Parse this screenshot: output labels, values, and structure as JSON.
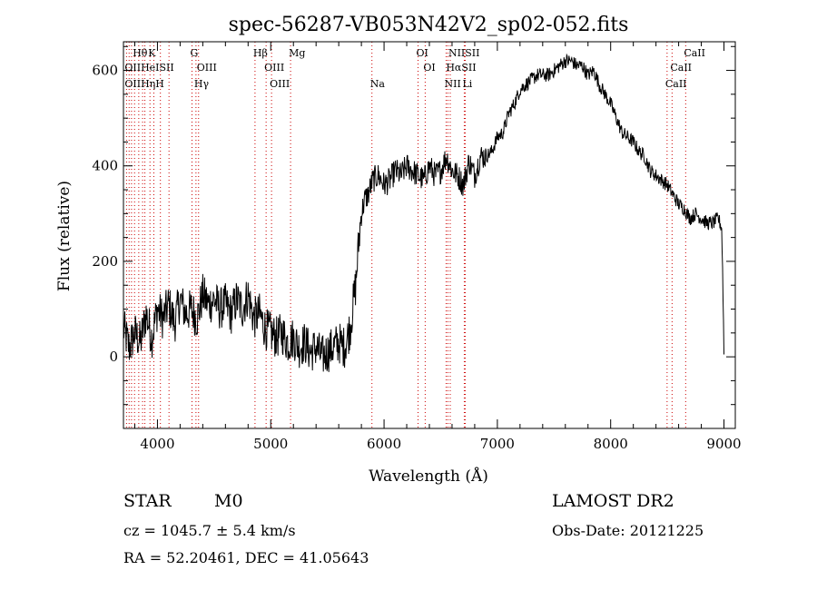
{
  "chart_data": {
    "type": "line",
    "title": "spec-56287-VB053N42V2_sp02-052.fits",
    "xlabel": "Wavelength (Å)",
    "ylabel": "Flux (relative)",
    "xlim": [
      3700,
      9100
    ],
    "ylim": [
      -150,
      660
    ],
    "x_ticks": [
      4000,
      5000,
      6000,
      7000,
      8000,
      9000
    ],
    "y_ticks": [
      0,
      200,
      400,
      600
    ],
    "grid": false,
    "series": [
      {
        "x": [
          3700,
          3750,
          3800,
          3850,
          3900,
          3950,
          4000,
          4050,
          4100,
          4150,
          4200,
          4250,
          4300,
          4350,
          4400,
          4450,
          4500,
          4550,
          4600,
          4650,
          4700,
          4750,
          4800,
          4850,
          4900,
          4950,
          5000,
          5050,
          5100,
          5150,
          5200,
          5250,
          5300,
          5350,
          5400,
          5450,
          5500,
          5550,
          5600,
          5650,
          5700,
          5750,
          5780,
          5800,
          5830,
          5860,
          5900,
          5950,
          6000,
          6050,
          6100,
          6150,
          6200,
          6250,
          6300,
          6350,
          6400,
          6450,
          6500,
          6550,
          6600,
          6650,
          6700,
          6750,
          6800,
          6850,
          6900,
          6950,
          7000,
          7050,
          7100,
          7150,
          7200,
          7250,
          7300,
          7350,
          7400,
          7450,
          7500,
          7550,
          7600,
          7650,
          7700,
          7750,
          7800,
          7850,
          7900,
          7950,
          8000,
          8050,
          8100,
          8150,
          8200,
          8250,
          8300,
          8350,
          8400,
          8450,
          8500,
          8550,
          8600,
          8650,
          8700,
          8750,
          8800,
          8850,
          8900,
          8950,
          8980,
          8990,
          9000
        ],
        "y": [
          60,
          20,
          50,
          30,
          90,
          40,
          100,
          80,
          110,
          70,
          120,
          90,
          100,
          80,
          130,
          110,
          120,
          100,
          110,
          90,
          120,
          100,
          130,
          80,
          90,
          60,
          50,
          40,
          50,
          30,
          40,
          20,
          30,
          10,
          20,
          0,
          10,
          20,
          30,
          20,
          60,
          150,
          250,
          300,
          330,
          340,
          370,
          380,
          360,
          370,
          390,
          380,
          400,
          390,
          380,
          370,
          400,
          380,
          390,
          420,
          390,
          380,
          360,
          410,
          380,
          420,
          420,
          430,
          460,
          470,
          510,
          530,
          560,
          570,
          580,
          590,
          590,
          590,
          600,
          610,
          620,
          620,
          610,
          610,
          590,
          600,
          570,
          550,
          530,
          500,
          470,
          460,
          450,
          430,
          420,
          390,
          380,
          370,
          360,
          340,
          320,
          310,
          290,
          300,
          290,
          280,
          280,
          290,
          270,
          160,
          10
        ]
      }
    ],
    "emission_lines": [
      {
        "label": "Hθ",
        "x": 3798,
        "row": 1
      },
      {
        "label": "K",
        "x": 3934,
        "row": 1
      },
      {
        "label": "G",
        "x": 4305,
        "row": 1
      },
      {
        "label": "Hβ",
        "x": 4861,
        "row": 1
      },
      {
        "label": "Mg",
        "x": 5175,
        "row": 1
      },
      {
        "label": "OI",
        "x": 6300,
        "row": 1
      },
      {
        "label": "NIISII",
        "x": 6584,
        "row": 1
      },
      {
        "label": "CaII",
        "x": 8662,
        "row": 1
      },
      {
        "label": "OIIHeISII",
        "x": 3727,
        "row": 2
      },
      {
        "label": "OIII",
        "x": 4363,
        "row": 2
      },
      {
        "label": "OIII",
        "x": 4959,
        "row": 2
      },
      {
        "label": "OI",
        "x": 6363,
        "row": 2
      },
      {
        "label": "HαSII",
        "x": 6563,
        "row": 2
      },
      {
        "label": "CaII",
        "x": 8542,
        "row": 2
      },
      {
        "label": "OIIHηH",
        "x": 3727,
        "row": 3
      },
      {
        "label": "Hγ",
        "x": 4340,
        "row": 3
      },
      {
        "label": "OIII",
        "x": 5007,
        "row": 3
      },
      {
        "label": "Na",
        "x": 5893,
        "row": 3
      },
      {
        "label": "NII",
        "x": 6548,
        "row": 3
      },
      {
        "label": "Li",
        "x": 6708,
        "row": 3
      },
      {
        "label": "CaII",
        "x": 8498,
        "row": 3
      }
    ],
    "marker_lines_x": [
      3727,
      3750,
      3771,
      3798,
      3835,
      3869,
      3889,
      3934,
      3968,
      4026,
      4102,
      4305,
      4340,
      4363,
      4861,
      4959,
      5007,
      5175,
      5893,
      6300,
      6363,
      6548,
      6563,
      6584,
      6708,
      6717,
      8498,
      8542,
      8662
    ]
  },
  "info": {
    "object_type": "STAR",
    "subclass": "M0",
    "survey": "LAMOST DR2",
    "redshift": "cz = 1045.7 ± 5.4 km/s",
    "obs_date": "Obs-Date: 20121225",
    "coords": "RA =  52.20461, DEC =  41.05643"
  },
  "colors": {
    "spectrum": "#000000",
    "marker_lines": "#cc0000",
    "axes": "#000000"
  }
}
